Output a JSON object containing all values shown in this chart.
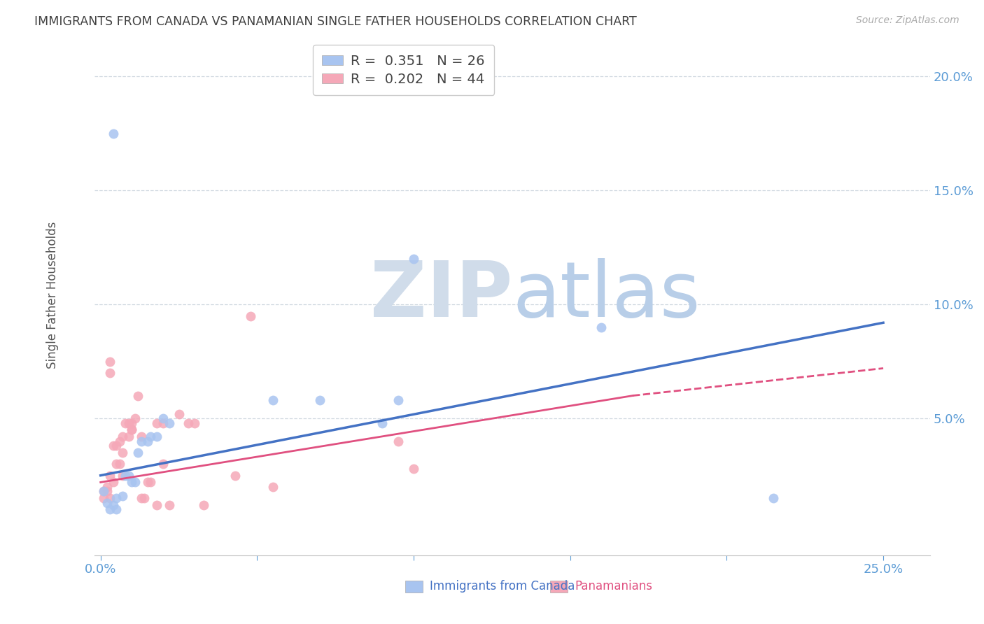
{
  "title": "IMMIGRANTS FROM CANADA VS PANAMANIAN SINGLE FATHER HOUSEHOLDS CORRELATION CHART",
  "source": "Source: ZipAtlas.com",
  "ylabel": "Single Father Households",
  "yticks": [
    0.0,
    0.05,
    0.1,
    0.15,
    0.2
  ],
  "ytick_labels": [
    "",
    "5.0%",
    "10.0%",
    "15.0%",
    "20.0%"
  ],
  "xtick_vals": [
    0.0,
    0.05,
    0.1,
    0.15,
    0.2,
    0.25
  ],
  "xtick_labels": [
    "0.0%",
    "",
    "",
    "",
    "",
    "25.0%"
  ],
  "xlim": [
    -0.002,
    0.265
  ],
  "ylim": [
    -0.01,
    0.218
  ],
  "legend_blue_label": "R =  0.351   N = 26",
  "legend_pink_label": "R =  0.202   N = 44",
  "legend_xlabel": "Immigrants from Canada",
  "legend_plabel": "Panamanians",
  "blue_color": "#a8c4f0",
  "pink_color": "#f5a8b8",
  "blue_line_color": "#4472c4",
  "pink_line_color": "#e05080",
  "axis_label_color": "#5b9bd5",
  "title_color": "#404040",
  "watermark_color": "#dde8f5",
  "blue_dots": [
    [
      0.001,
      0.018
    ],
    [
      0.002,
      0.013
    ],
    [
      0.003,
      0.01
    ],
    [
      0.004,
      0.012
    ],
    [
      0.005,
      0.01
    ],
    [
      0.005,
      0.015
    ],
    [
      0.007,
      0.016
    ],
    [
      0.008,
      0.025
    ],
    [
      0.009,
      0.025
    ],
    [
      0.01,
      0.022
    ],
    [
      0.011,
      0.022
    ],
    [
      0.012,
      0.035
    ],
    [
      0.013,
      0.04
    ],
    [
      0.015,
      0.04
    ],
    [
      0.016,
      0.042
    ],
    [
      0.018,
      0.042
    ],
    [
      0.02,
      0.05
    ],
    [
      0.022,
      0.048
    ],
    [
      0.055,
      0.058
    ],
    [
      0.07,
      0.058
    ],
    [
      0.09,
      0.048
    ],
    [
      0.095,
      0.058
    ],
    [
      0.1,
      0.12
    ],
    [
      0.16,
      0.09
    ],
    [
      0.215,
      0.015
    ],
    [
      0.004,
      0.175
    ]
  ],
  "pink_dots": [
    [
      0.001,
      0.018
    ],
    [
      0.001,
      0.015
    ],
    [
      0.002,
      0.02
    ],
    [
      0.002,
      0.018
    ],
    [
      0.003,
      0.015
    ],
    [
      0.003,
      0.025
    ],
    [
      0.004,
      0.022
    ],
    [
      0.004,
      0.038
    ],
    [
      0.005,
      0.03
    ],
    [
      0.005,
      0.038
    ],
    [
      0.006,
      0.03
    ],
    [
      0.006,
      0.04
    ],
    [
      0.007,
      0.035
    ],
    [
      0.007,
      0.042
    ],
    [
      0.007,
      0.025
    ],
    [
      0.008,
      0.048
    ],
    [
      0.009,
      0.042
    ],
    [
      0.009,
      0.048
    ],
    [
      0.01,
      0.045
    ],
    [
      0.01,
      0.045
    ],
    [
      0.01,
      0.048
    ],
    [
      0.011,
      0.05
    ],
    [
      0.012,
      0.06
    ],
    [
      0.013,
      0.042
    ],
    [
      0.013,
      0.015
    ],
    [
      0.014,
      0.015
    ],
    [
      0.015,
      0.022
    ],
    [
      0.016,
      0.022
    ],
    [
      0.018,
      0.012
    ],
    [
      0.018,
      0.048
    ],
    [
      0.02,
      0.048
    ],
    [
      0.02,
      0.03
    ],
    [
      0.022,
      0.012
    ],
    [
      0.025,
      0.052
    ],
    [
      0.028,
      0.048
    ],
    [
      0.03,
      0.048
    ],
    [
      0.033,
      0.012
    ],
    [
      0.043,
      0.025
    ],
    [
      0.048,
      0.095
    ],
    [
      0.055,
      0.02
    ],
    [
      0.095,
      0.04
    ],
    [
      0.1,
      0.028
    ],
    [
      0.003,
      0.075
    ],
    [
      0.003,
      0.07
    ]
  ],
  "blue_line": [
    0.0,
    0.025,
    0.25,
    0.092
  ],
  "pink_line_solid": [
    0.0,
    0.022,
    0.17,
    0.06
  ],
  "pink_line_dashed": [
    0.17,
    0.06,
    0.25,
    0.072
  ]
}
